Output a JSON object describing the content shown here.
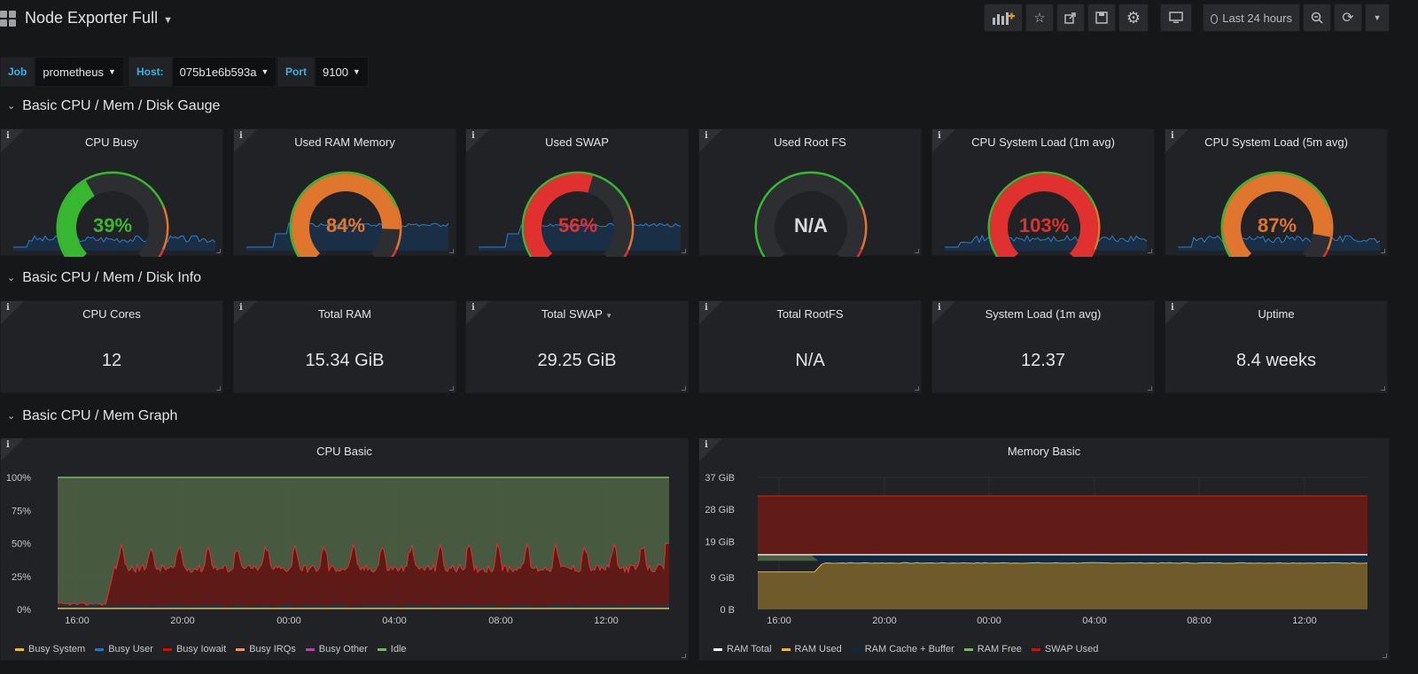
{
  "header": {
    "dashboard_title": "Node Exporter Full",
    "time_range": "Last 24 hours"
  },
  "variables": [
    {
      "label": "Job",
      "value": "prometheus"
    },
    {
      "label": "Host:",
      "value": "075b1e6b593a"
    },
    {
      "label": "Port",
      "value": "9100"
    }
  ],
  "rows": {
    "gauge_row": "Basic CPU / Mem / Disk Gauge",
    "info_row": "Basic CPU / Mem / Disk Info",
    "graph_row": "Basic CPU / Mem Graph"
  },
  "gauges": [
    {
      "title": "CPU Busy",
      "display": "39%",
      "value": 39,
      "color": "#37b830"
    },
    {
      "title": "Used RAM Memory",
      "display": "84%",
      "value": 84,
      "color": "#e0752d"
    },
    {
      "title": "Used SWAP",
      "display": "56%",
      "value": 56,
      "color": "#e0302f"
    },
    {
      "title": "Used Root FS",
      "display": "N/A",
      "value": null,
      "color": "#d8d9da"
    },
    {
      "title": "CPU System Load (1m avg)",
      "display": "103%",
      "value": 103,
      "color": "#e0302f"
    },
    {
      "title": "CPU System Load (5m avg)",
      "display": "87%",
      "value": 87,
      "color": "#e0752d"
    }
  ],
  "stats": [
    {
      "title": "CPU Cores",
      "value": "12"
    },
    {
      "title": "Total RAM",
      "value": "15.34 GiB"
    },
    {
      "title": "Total SWAP",
      "value": "29.25 GiB"
    },
    {
      "title": "Total RootFS",
      "value": "N/A"
    },
    {
      "title": "System Load (1m avg)",
      "value": "12.37"
    },
    {
      "title": "Uptime",
      "value": "8.4 weeks"
    }
  ],
  "chart_data": [
    {
      "type": "area",
      "title": "CPU Basic",
      "y_ticks": [
        "100%",
        "75%",
        "50%",
        "25%",
        "0%"
      ],
      "x_ticks": [
        "16:00",
        "20:00",
        "00:00",
        "04:00",
        "08:00",
        "12:00"
      ],
      "ylim": [
        0,
        100
      ],
      "series": [
        {
          "name": "Busy System",
          "color": "#eab839"
        },
        {
          "name": "Busy User",
          "color": "#1f78c1"
        },
        {
          "name": "Busy Iowait",
          "color": "#bf1b00"
        },
        {
          "name": "Busy IRQs",
          "color": "#f9934e"
        },
        {
          "name": "Busy Other",
          "color": "#ba43a9"
        },
        {
          "name": "Idle",
          "color": "#7eb26d"
        }
      ],
      "approx_values": {
        "Busy Iowait_before_16:30": 3,
        "Busy Iowait_after_17:00": 33,
        "Busy Iowait_peaks": 45,
        "Idle_fill_to": 100
      }
    },
    {
      "type": "area",
      "title": "Memory Basic",
      "y_ticks": [
        "37 GiB",
        "28 GiB",
        "19 GiB",
        "9 GiB",
        "0 B"
      ],
      "x_ticks": [
        "16:00",
        "20:00",
        "00:00",
        "04:00",
        "08:00",
        "12:00"
      ],
      "ylim": [
        0,
        37
      ],
      "series": [
        {
          "name": "RAM Total",
          "color": "#ffffff"
        },
        {
          "name": "RAM Used",
          "color": "#eab839"
        },
        {
          "name": "RAM Cache + Buffer",
          "color": "#052b51"
        },
        {
          "name": "RAM Free",
          "color": "#7eb26d"
        },
        {
          "name": "SWAP Used",
          "color": "#bf1b00"
        }
      ],
      "approx_values": {
        "RAM Total": 15.3,
        "RAM Used_start": 10.5,
        "RAM Used_after": 13.1,
        "SWAP Used_top": 31.8
      }
    }
  ]
}
